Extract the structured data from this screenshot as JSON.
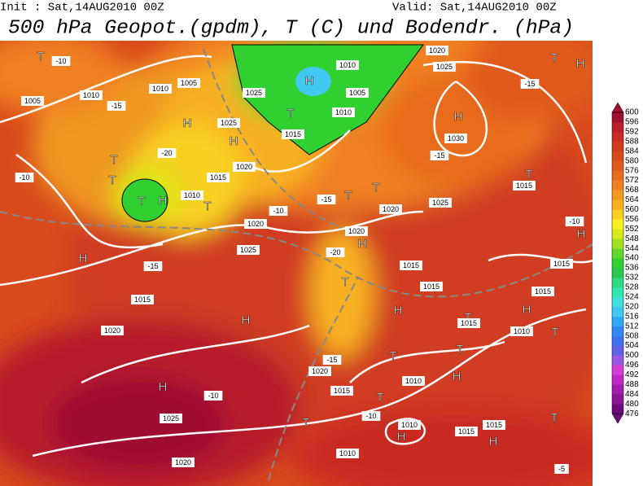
{
  "header": {
    "init": "Init : Sat,14AUG2010 00Z",
    "valid": "Valid: Sat,14AUG2010 00Z",
    "title": "500 hPa Geopot.(gpdm), T (C) und Bodendr. (hPa)"
  },
  "colorbar": {
    "labels": [
      476,
      480,
      484,
      488,
      492,
      496,
      500,
      504,
      508,
      512,
      516,
      520,
      524,
      528,
      532,
      536,
      540,
      544,
      548,
      552,
      556,
      560,
      564,
      568,
      572,
      576,
      580,
      584,
      588,
      592,
      596,
      600
    ],
    "colors": [
      "#6a0a7a",
      "#8a1494",
      "#a41cae",
      "#c028c8",
      "#d83cd8",
      "#9858e0",
      "#6060e8",
      "#4070f0",
      "#3088f8",
      "#30a8f8",
      "#40c8f0",
      "#40e0e0",
      "#30e8b0",
      "#30d880",
      "#28c850",
      "#30d030",
      "#60d828",
      "#a0e020",
      "#d8e818",
      "#f8f020",
      "#f8d020",
      "#f8b020",
      "#f09820",
      "#f08020",
      "#e86c1c",
      "#e05a1a",
      "#d84a1c",
      "#d03c20",
      "#c82c24",
      "#b81e2c",
      "#a01030"
    ]
  },
  "map": {
    "labels": [
      "T",
      "-10",
      "1005",
      "1010",
      "-15",
      "1005",
      "1010",
      "H",
      "1025",
      "H",
      "-20",
      "T",
      "T",
      "1020",
      "1015",
      "T",
      "H",
      "1010",
      "T",
      "-10",
      "H",
      "1025",
      "1020",
      "-15",
      "1015",
      "1020",
      "H",
      "H",
      "1025",
      "1020",
      "-10",
      "H",
      "1025",
      "1010",
      "1005",
      "1010",
      "T",
      "1015",
      "H",
      "1030",
      "1020",
      "1025",
      "-15",
      "T",
      "H",
      "-15",
      "T",
      "1015",
      "1025",
      "1020",
      "T",
      "T",
      "-15",
      "-10",
      "1020",
      "H",
      "-20",
      "T",
      "1015",
      "1015",
      "H",
      "T",
      "H",
      "T",
      "1015",
      "1010",
      "-15",
      "1020",
      "1015",
      "1010",
      "T",
      "T",
      "H",
      "T",
      "-10",
      "T",
      "1010",
      "H",
      "1015",
      "1015",
      "H",
      "T",
      "1010",
      "-5",
      "H",
      "1015",
      "-10",
      "1015"
    ]
  }
}
